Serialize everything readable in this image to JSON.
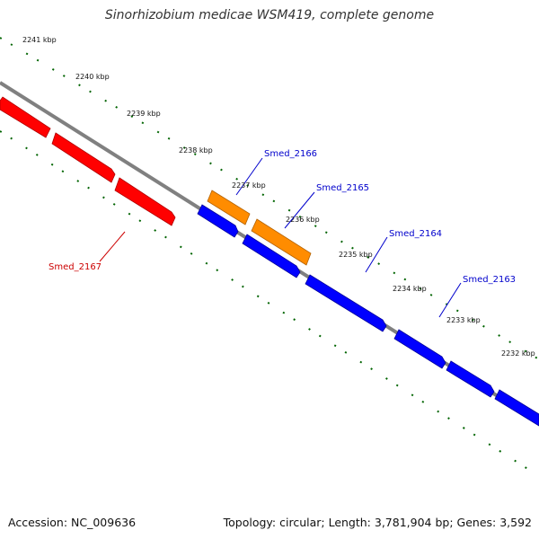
{
  "title": "Sinorhizobium medicae WSM419, complete genome",
  "footer": {
    "accession": "Accession: NC_009636",
    "stats": "Topology: circular; Length: 3,781,904 bp; Genes: 3,592"
  },
  "colors": {
    "backbone": "#808080",
    "ticks": "#006400",
    "forward_gene": "#ff0000",
    "reverse_gene": "#0000ff",
    "orange_gene": "#ff8c00",
    "forward_label": "#cc0000",
    "reverse_label": "#0000cc"
  },
  "kbp_labels": [
    {
      "text": "2241 kbp",
      "pos": 2241
    },
    {
      "text": "2240 kbp",
      "pos": 2240
    },
    {
      "text": "2239 kbp",
      "pos": 2239
    },
    {
      "text": "2238 kbp",
      "pos": 2238
    },
    {
      "text": "2237 kbp",
      "pos": 2237
    },
    {
      "text": "2236 kbp",
      "pos": 2236
    },
    {
      "text": "2235 kbp",
      "pos": 2235
    },
    {
      "text": "2234 kbp",
      "pos": 2234
    },
    {
      "text": "2233 kbp",
      "pos": 2233
    },
    {
      "text": "2232 kbp",
      "pos": 2232
    }
  ],
  "gene_labels": [
    {
      "name": "Smed_2167",
      "strand": "forward"
    },
    {
      "name": "Smed_2166",
      "strand": "reverse"
    },
    {
      "name": "Smed_2165",
      "strand": "reverse"
    },
    {
      "name": "Smed_2164",
      "strand": "reverse"
    },
    {
      "name": "Smed_2163",
      "strand": "reverse"
    }
  ]
}
